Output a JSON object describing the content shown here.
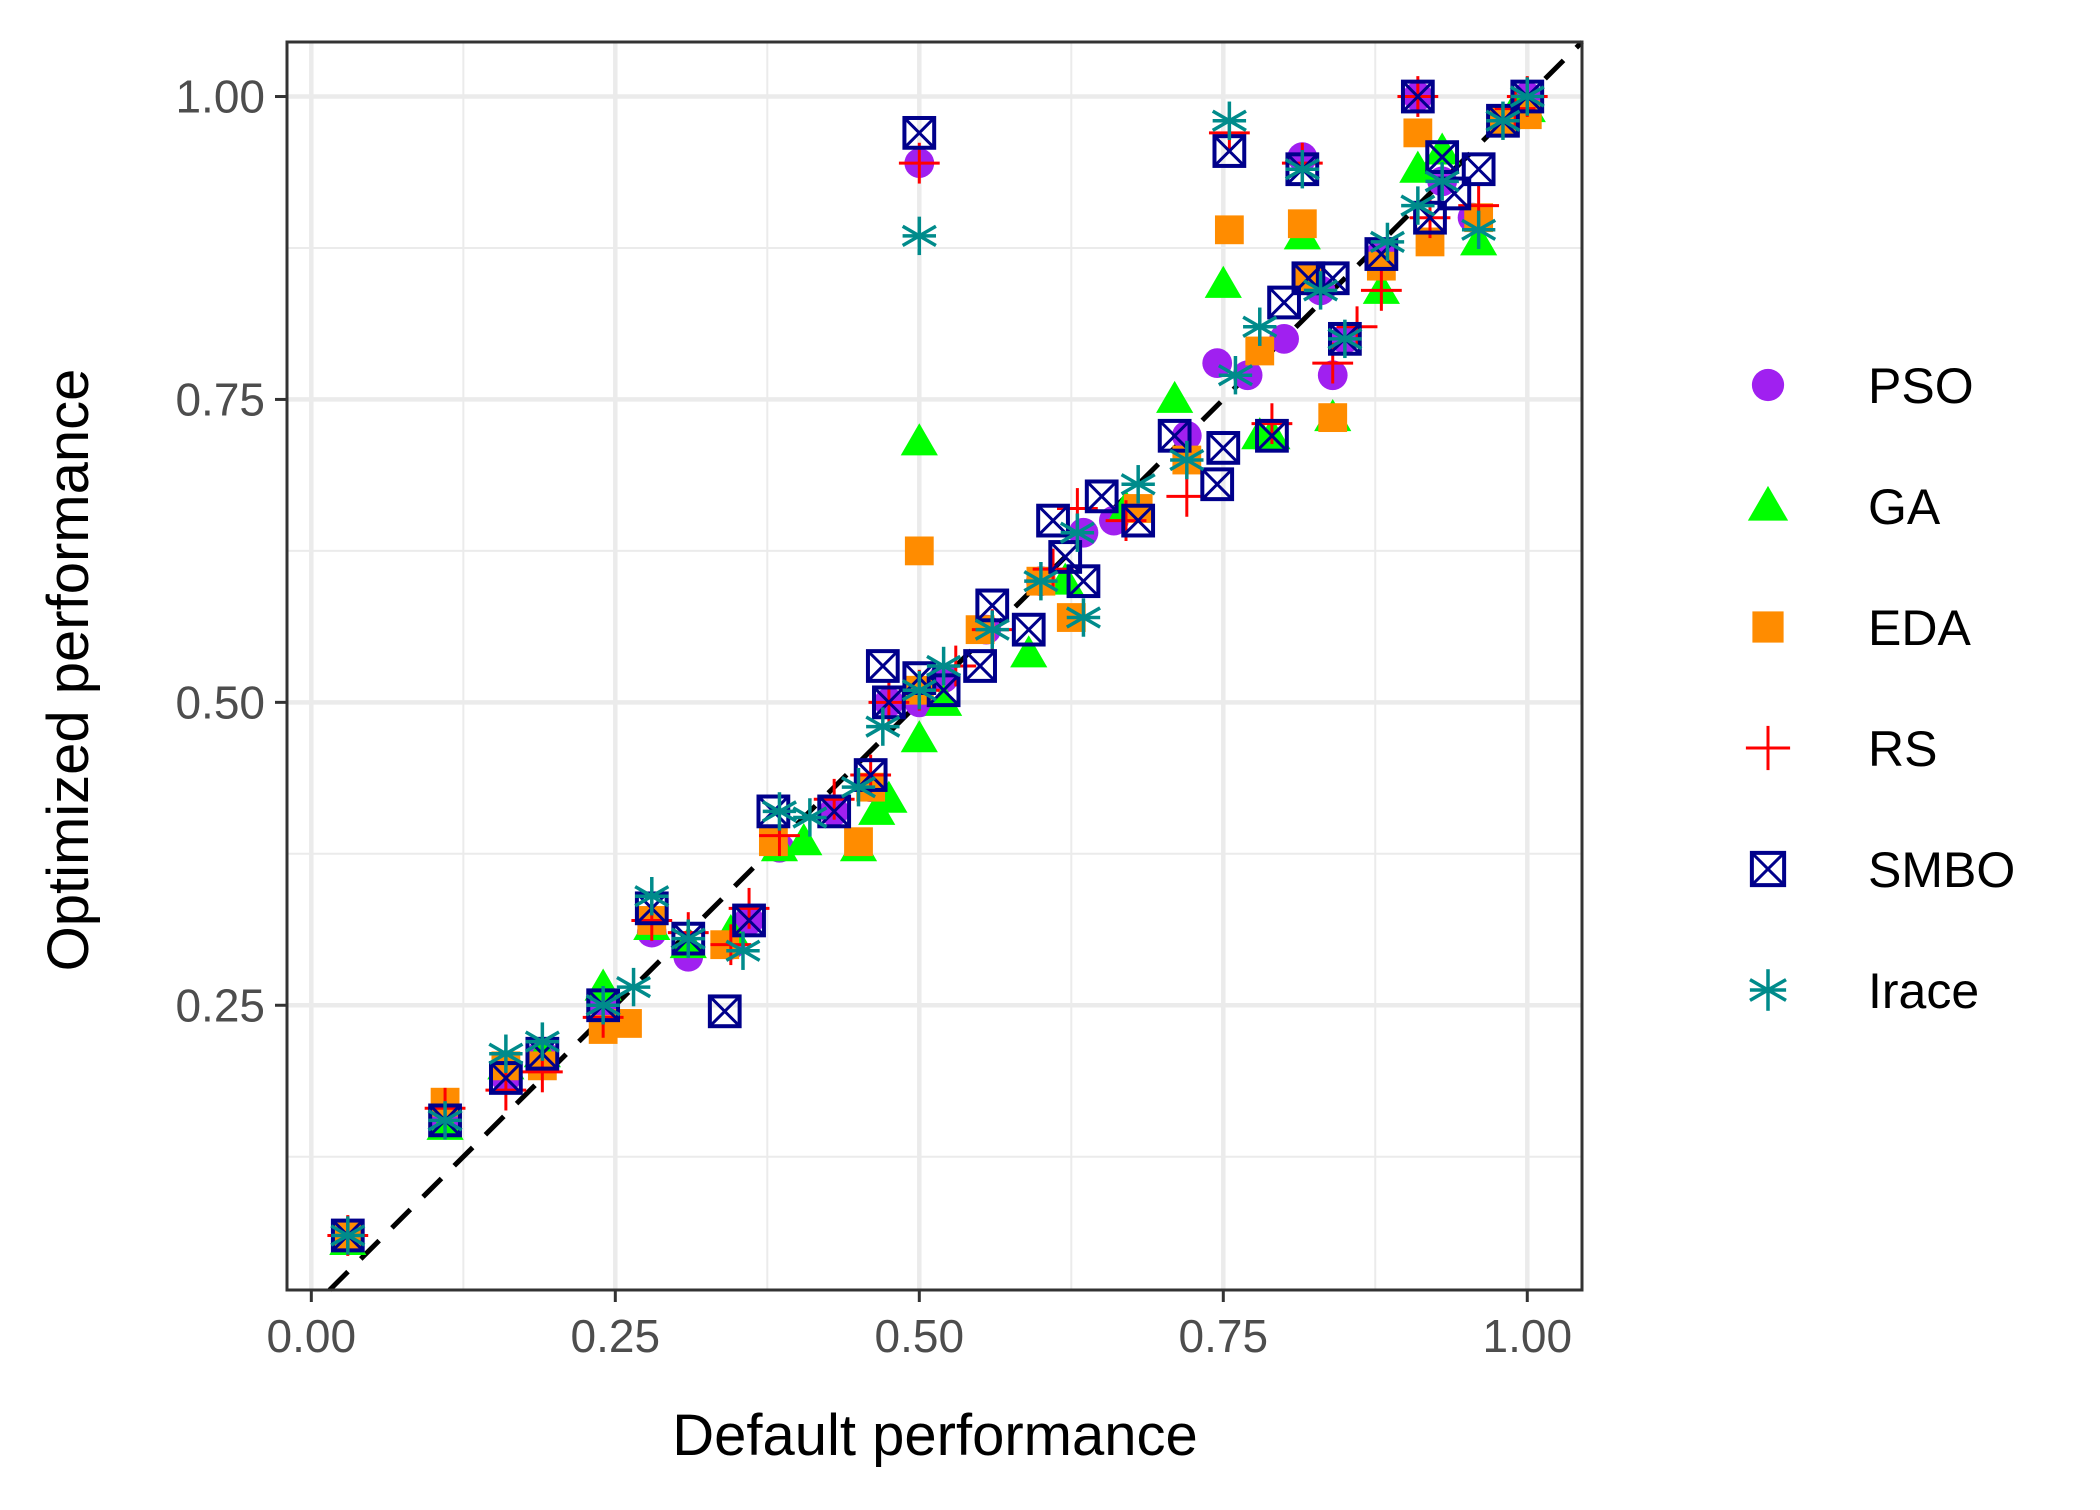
{
  "chart_data": {
    "type": "scatter",
    "xlabel": "Default performance",
    "ylabel": "Optimized performance",
    "xlim": [
      -0.02,
      1.045
    ],
    "ylim": [
      0.015,
      1.045
    ],
    "x_ticks": [
      0.0,
      0.25,
      0.5,
      0.75,
      1.0
    ],
    "x_tick_labels": [
      "0.00",
      "0.25",
      "0.50",
      "0.75",
      "1.00"
    ],
    "y_ticks": [
      0.25,
      0.5,
      0.75,
      1.0
    ],
    "y_tick_labels": [
      "0.25",
      "0.50",
      "0.75",
      "1.00"
    ],
    "x_minor": [
      0.125,
      0.375,
      0.625,
      0.875
    ],
    "y_minor": [
      0.125,
      0.375,
      0.625,
      0.875
    ],
    "grid": true,
    "reference_line": {
      "style": "dashed",
      "color": "#000000",
      "slope": 1,
      "intercept": 0
    },
    "legend_position": "right",
    "series": [
      {
        "name": "PSO",
        "marker": "circle",
        "color": "#A020F0",
        "points": [
          [
            0.03,
            0.06
          ],
          [
            0.11,
            0.155
          ],
          [
            0.16,
            0.19
          ],
          [
            0.19,
            0.21
          ],
          [
            0.24,
            0.25
          ],
          [
            0.28,
            0.31
          ],
          [
            0.31,
            0.29
          ],
          [
            0.345,
            0.3
          ],
          [
            0.36,
            0.32
          ],
          [
            0.385,
            0.38
          ],
          [
            0.43,
            0.41
          ],
          [
            0.46,
            0.43
          ],
          [
            0.475,
            0.5
          ],
          [
            0.5,
            0.945
          ],
          [
            0.5,
            0.5
          ],
          [
            0.52,
            0.52
          ],
          [
            0.555,
            0.56
          ],
          [
            0.6,
            0.6
          ],
          [
            0.635,
            0.64
          ],
          [
            0.66,
            0.65
          ],
          [
            0.72,
            0.72
          ],
          [
            0.745,
            0.78
          ],
          [
            0.77,
            0.77
          ],
          [
            0.8,
            0.8
          ],
          [
            0.815,
            0.95
          ],
          [
            0.83,
            0.84
          ],
          [
            0.84,
            0.77
          ],
          [
            0.85,
            0.8
          ],
          [
            0.88,
            0.87
          ],
          [
            0.91,
            1.0
          ],
          [
            0.93,
            0.93
          ],
          [
            0.955,
            0.9
          ],
          [
            0.98,
            0.98
          ],
          [
            1.0,
            1.0
          ]
        ]
      },
      {
        "name": "GA",
        "marker": "triangle",
        "color": "#00FF00",
        "points": [
          [
            0.03,
            0.055
          ],
          [
            0.11,
            0.15
          ],
          [
            0.16,
            0.2
          ],
          [
            0.19,
            0.21
          ],
          [
            0.24,
            0.265
          ],
          [
            0.28,
            0.315
          ],
          [
            0.31,
            0.3
          ],
          [
            0.345,
            0.31
          ],
          [
            0.385,
            0.38
          ],
          [
            0.405,
            0.385
          ],
          [
            0.45,
            0.38
          ],
          [
            0.465,
            0.41
          ],
          [
            0.475,
            0.42
          ],
          [
            0.5,
            0.715
          ],
          [
            0.5,
            0.47
          ],
          [
            0.52,
            0.5
          ],
          [
            0.59,
            0.54
          ],
          [
            0.62,
            0.6
          ],
          [
            0.67,
            0.66
          ],
          [
            0.71,
            0.75
          ],
          [
            0.75,
            0.845
          ],
          [
            0.78,
            0.72
          ],
          [
            0.79,
            0.72
          ],
          [
            0.815,
            0.885
          ],
          [
            0.84,
            0.735
          ],
          [
            0.88,
            0.84
          ],
          [
            0.91,
            0.94
          ],
          [
            0.93,
            0.955
          ],
          [
            0.96,
            0.88
          ],
          [
            0.99,
            0.99
          ],
          [
            1.0,
            0.99
          ]
        ]
      },
      {
        "name": "EDA",
        "marker": "square",
        "color": "#FF8C00",
        "points": [
          [
            0.03,
            0.06
          ],
          [
            0.11,
            0.17
          ],
          [
            0.16,
            0.2
          ],
          [
            0.19,
            0.2
          ],
          [
            0.24,
            0.23
          ],
          [
            0.26,
            0.235
          ],
          [
            0.28,
            0.32
          ],
          [
            0.34,
            0.3
          ],
          [
            0.38,
            0.385
          ],
          [
            0.45,
            0.385
          ],
          [
            0.46,
            0.43
          ],
          [
            0.5,
            0.625
          ],
          [
            0.5,
            0.51
          ],
          [
            0.55,
            0.56
          ],
          [
            0.6,
            0.6
          ],
          [
            0.625,
            0.57
          ],
          [
            0.68,
            0.66
          ],
          [
            0.72,
            0.7
          ],
          [
            0.755,
            0.89
          ],
          [
            0.78,
            0.79
          ],
          [
            0.815,
            0.895
          ],
          [
            0.82,
            0.85
          ],
          [
            0.84,
            0.735
          ],
          [
            0.88,
            0.86
          ],
          [
            0.91,
            0.97
          ],
          [
            0.92,
            0.88
          ],
          [
            0.96,
            0.9
          ],
          [
            0.98,
            0.98
          ],
          [
            1.0,
            0.985
          ]
        ]
      },
      {
        "name": "RS",
        "marker": "plus",
        "color": "#FF0000",
        "points": [
          [
            0.03,
            0.06
          ],
          [
            0.11,
            0.165
          ],
          [
            0.16,
            0.18
          ],
          [
            0.19,
            0.195
          ],
          [
            0.24,
            0.24
          ],
          [
            0.28,
            0.32
          ],
          [
            0.31,
            0.31
          ],
          [
            0.345,
            0.3
          ],
          [
            0.36,
            0.33
          ],
          [
            0.385,
            0.39
          ],
          [
            0.43,
            0.42
          ],
          [
            0.46,
            0.44
          ],
          [
            0.475,
            0.5
          ],
          [
            0.5,
            0.945
          ],
          [
            0.5,
            0.51
          ],
          [
            0.53,
            0.53
          ],
          [
            0.56,
            0.56
          ],
          [
            0.61,
            0.61
          ],
          [
            0.63,
            0.66
          ],
          [
            0.67,
            0.65
          ],
          [
            0.72,
            0.67
          ],
          [
            0.755,
            0.97
          ],
          [
            0.79,
            0.73
          ],
          [
            0.815,
            0.945
          ],
          [
            0.84,
            0.78
          ],
          [
            0.86,
            0.81
          ],
          [
            0.88,
            0.84
          ],
          [
            0.91,
            1.0
          ],
          [
            0.92,
            0.9
          ],
          [
            0.96,
            0.91
          ],
          [
            0.99,
            0.99
          ],
          [
            1.0,
            1.0
          ]
        ]
      },
      {
        "name": "SMBO",
        "marker": "square-x",
        "color": "#00008B",
        "points": [
          [
            0.03,
            0.06
          ],
          [
            0.11,
            0.155
          ],
          [
            0.16,
            0.19
          ],
          [
            0.19,
            0.21
          ],
          [
            0.24,
            0.25
          ],
          [
            0.28,
            0.33
          ],
          [
            0.31,
            0.305
          ],
          [
            0.34,
            0.245
          ],
          [
            0.36,
            0.32
          ],
          [
            0.38,
            0.41
          ],
          [
            0.43,
            0.41
          ],
          [
            0.46,
            0.44
          ],
          [
            0.47,
            0.53
          ],
          [
            0.475,
            0.5
          ],
          [
            0.5,
            0.97
          ],
          [
            0.5,
            0.52
          ],
          [
            0.52,
            0.51
          ],
          [
            0.55,
            0.53
          ],
          [
            0.56,
            0.58
          ],
          [
            0.59,
            0.56
          ],
          [
            0.61,
            0.65
          ],
          [
            0.62,
            0.62
          ],
          [
            0.635,
            0.6
          ],
          [
            0.65,
            0.67
          ],
          [
            0.68,
            0.65
          ],
          [
            0.71,
            0.72
          ],
          [
            0.745,
            0.68
          ],
          [
            0.75,
            0.71
          ],
          [
            0.755,
            0.955
          ],
          [
            0.79,
            0.72
          ],
          [
            0.8,
            0.83
          ],
          [
            0.815,
            0.94
          ],
          [
            0.82,
            0.85
          ],
          [
            0.84,
            0.85
          ],
          [
            0.85,
            0.8
          ],
          [
            0.88,
            0.87
          ],
          [
            0.91,
            1.0
          ],
          [
            0.92,
            0.9
          ],
          [
            0.93,
            0.95
          ],
          [
            0.94,
            0.92
          ],
          [
            0.96,
            0.94
          ],
          [
            0.98,
            0.98
          ],
          [
            1.0,
            1.0
          ]
        ]
      },
      {
        "name": "Irace",
        "marker": "asterisk",
        "color": "#008B8B",
        "points": [
          [
            0.03,
            0.06
          ],
          [
            0.11,
            0.155
          ],
          [
            0.16,
            0.21
          ],
          [
            0.19,
            0.22
          ],
          [
            0.24,
            0.25
          ],
          [
            0.265,
            0.265
          ],
          [
            0.28,
            0.34
          ],
          [
            0.31,
            0.305
          ],
          [
            0.355,
            0.295
          ],
          [
            0.385,
            0.41
          ],
          [
            0.41,
            0.405
          ],
          [
            0.45,
            0.43
          ],
          [
            0.47,
            0.48
          ],
          [
            0.5,
            0.885
          ],
          [
            0.5,
            0.51
          ],
          [
            0.52,
            0.53
          ],
          [
            0.56,
            0.56
          ],
          [
            0.6,
            0.6
          ],
          [
            0.63,
            0.64
          ],
          [
            0.635,
            0.57
          ],
          [
            0.68,
            0.68
          ],
          [
            0.72,
            0.7
          ],
          [
            0.755,
            0.98
          ],
          [
            0.76,
            0.77
          ],
          [
            0.78,
            0.81
          ],
          [
            0.815,
            0.94
          ],
          [
            0.83,
            0.84
          ],
          [
            0.85,
            0.8
          ],
          [
            0.885,
            0.88
          ],
          [
            0.91,
            0.91
          ],
          [
            0.93,
            0.93
          ],
          [
            0.96,
            0.89
          ],
          [
            0.98,
            0.98
          ],
          [
            1.0,
            1.0
          ]
        ]
      }
    ]
  }
}
